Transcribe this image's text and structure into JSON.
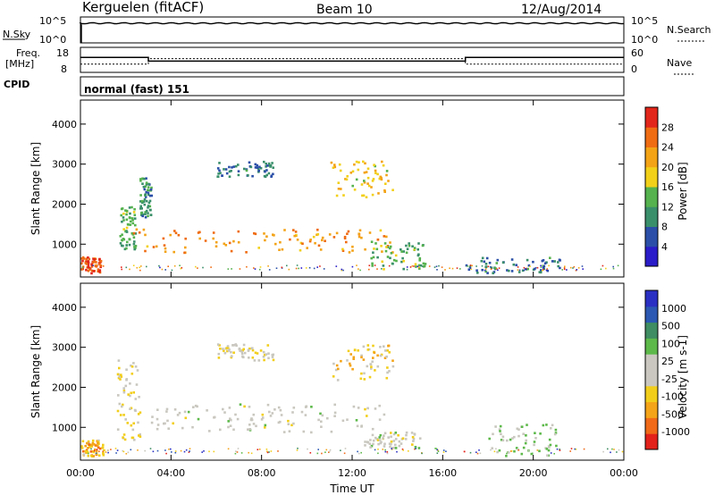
{
  "header": {
    "station": "Kerguelen (fitACF)",
    "beam": "Beam 10",
    "date": "12/Aug/2014"
  },
  "noise_panel": {
    "left_label": "N.Sky",
    "right_label": "N.Search",
    "left_ticks": [
      "10^5",
      "10^0"
    ],
    "right_ticks": [
      "10^5",
      "10^0"
    ]
  },
  "freq_panel": {
    "left_label_1": "Freq.",
    "left_label_2": "[MHz]",
    "left_ticks": [
      "18",
      "8"
    ],
    "right_ticks": [
      "60",
      "0"
    ],
    "right_label": "Nave"
  },
  "cpid": {
    "label": "CPID",
    "value": "normal (fast) 151"
  },
  "colors": {
    "power_scale": [
      "#2a1cc8",
      "#2b4fa8",
      "#3a8f6b",
      "#55b24e",
      "#f2d019",
      "#f3a316",
      "#ef6c13",
      "#e2261b"
    ],
    "velocity_scale": [
      "#e2221b",
      "#f06a18",
      "#f4a418",
      "#f2ce1b",
      "#c9c7bf",
      "#c9c7bf",
      "#5db94a",
      "#3f8d62",
      "#2b58b2",
      "#2a2fc3"
    ]
  },
  "chart_data": [
    {
      "type": "heatmap",
      "title": "",
      "xlabel": "Time UT",
      "ylabel": "Slant Range [km]",
      "x_ticks": [
        "00:00",
        "04:00",
        "08:00",
        "12:00",
        "16:00",
        "20:00",
        "00:00"
      ],
      "y_ticks": [
        "1000",
        "2000",
        "3000",
        "4000"
      ],
      "ylim": [
        180,
        4600
      ],
      "colorbar": {
        "label": "Power [dB]",
        "ticks": [
          "28",
          "24",
          "20",
          "16",
          "12",
          "8",
          "4"
        ],
        "range": [
          0,
          30
        ]
      },
      "regions": [
        {
          "t_start": 0.0,
          "t_end": 0.9,
          "r_start": 300,
          "r_end": 700,
          "value": 26
        },
        {
          "t_start": 1.7,
          "t_end": 2.4,
          "r_start": 900,
          "r_end": 2000,
          "value": 12
        },
        {
          "t_start": 2.3,
          "t_end": 13.8,
          "r_start": 800,
          "r_end": 1400,
          "value": 22
        },
        {
          "t_start": 2.6,
          "t_end": 3.1,
          "r_start": 1700,
          "r_end": 2700,
          "value": 10
        },
        {
          "t_start": 6.0,
          "t_end": 8.5,
          "r_start": 2700,
          "r_end": 3100,
          "value": 8
        },
        {
          "t_start": 11.0,
          "t_end": 13.8,
          "r_start": 2200,
          "r_end": 3100,
          "value": 18
        },
        {
          "t_start": 12.8,
          "t_end": 15.2,
          "r_start": 400,
          "r_end": 1100,
          "value": 12
        },
        {
          "t_start": 17.0,
          "t_end": 21.2,
          "r_start": 300,
          "r_end": 700,
          "value": 8
        }
      ]
    },
    {
      "type": "heatmap",
      "title": "",
      "xlabel": "Time UT",
      "ylabel": "Slant Range [km]",
      "x_ticks": [
        "00:00",
        "04:00",
        "08:00",
        "12:00",
        "16:00",
        "20:00",
        "00:00"
      ],
      "y_ticks": [
        "1000",
        "2000",
        "3000",
        "4000"
      ],
      "ylim": [
        180,
        4600
      ],
      "colorbar": {
        "label": "Velocity [m s-1]",
        "ticks": [
          "1000",
          "500",
          "100",
          "25",
          "-25",
          "-100",
          "-500",
          "-1000"
        ],
        "range": [
          -1000,
          1000
        ]
      },
      "regions": [
        {
          "t_start": 0.0,
          "t_end": 1.0,
          "r_start": 300,
          "r_end": 700,
          "value": -400
        },
        {
          "t_start": 1.6,
          "t_end": 2.6,
          "r_start": 700,
          "r_end": 2800,
          "value": -150
        },
        {
          "t_start": 3.0,
          "t_end": 13.5,
          "r_start": 900,
          "r_end": 1600,
          "value": 0
        },
        {
          "t_start": 6.0,
          "t_end": 8.5,
          "r_start": 2700,
          "r_end": 3100,
          "value": -100
        },
        {
          "t_start": 11.0,
          "t_end": 13.8,
          "r_start": 2200,
          "r_end": 3100,
          "value": -300
        },
        {
          "t_start": 12.5,
          "t_end": 15.0,
          "r_start": 500,
          "r_end": 900,
          "value": 0
        },
        {
          "t_start": 18.0,
          "t_end": 21.0,
          "r_start": 300,
          "r_end": 1100,
          "value": 150
        }
      ]
    },
    {
      "type": "line",
      "title": "",
      "series": [
        {
          "name": "Freq.",
          "x": [
            0,
            3,
            3,
            17,
            17,
            24
          ],
          "values": [
            14,
            14,
            12.5,
            12.5,
            14,
            14
          ]
        },
        {
          "name": "Nave",
          "x": [
            0,
            3,
            3,
            17,
            17,
            24
          ],
          "values": [
            20,
            20,
            33,
            33,
            20,
            20
          ]
        }
      ]
    }
  ]
}
